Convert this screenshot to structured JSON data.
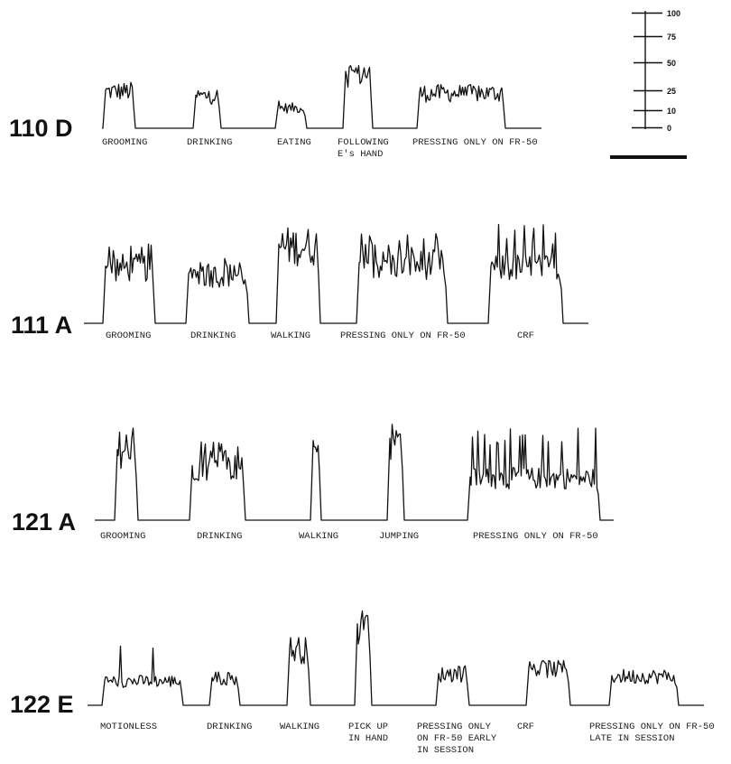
{
  "chart_data": {
    "type": "line",
    "title": "",
    "scale": {
      "ticks": [
        0,
        10,
        25,
        50,
        75,
        100
      ],
      "range": [
        0,
        100
      ]
    },
    "rows": [
      {
        "label": "110 D",
        "behaviors": [
          {
            "label": [
              "GROOMING"
            ],
            "level": 40,
            "peak": 52,
            "spiky": false
          },
          {
            "label": [
              "DRINKING"
            ],
            "level": 35,
            "peak": 42,
            "spiky": false
          },
          {
            "label": [
              "EATING"
            ],
            "level": 22,
            "peak": 30,
            "spiky": false
          },
          {
            "label": [
              "FOLLOWING",
              "E's HAND"
            ],
            "level": 60,
            "peak": 66,
            "spiky": false
          },
          {
            "label": [
              "PRESSING ONLY ON FR-50"
            ],
            "level": 38,
            "peak": 46,
            "spiky": false
          }
        ]
      },
      {
        "label": "111 A",
        "behaviors": [
          {
            "label": [
              "GROOMING"
            ],
            "level": 52,
            "peak": 72,
            "spiky": true
          },
          {
            "label": [
              "DRINKING"
            ],
            "level": 45,
            "peak": 60,
            "spiky": true
          },
          {
            "label": [
              "WALKING"
            ],
            "level": 72,
            "peak": 100,
            "spiky": false
          },
          {
            "label": [
              "PRESSING ONLY ON FR-50"
            ],
            "level": 55,
            "peak": 82,
            "spiky": true
          },
          {
            "label": [
              "CRF"
            ],
            "level": 52,
            "peak": 90,
            "spiky": true
          }
        ]
      },
      {
        "label": "121 A",
        "behaviors": [
          {
            "label": [
              "GROOMING"
            ],
            "level": 62,
            "peak": 88,
            "spiky": true
          },
          {
            "label": [
              "DRINKING"
            ],
            "level": 48,
            "peak": 75,
            "spiky": true
          },
          {
            "label": [
              "WALKING"
            ],
            "level": 70,
            "peak": 80,
            "spiky": false
          },
          {
            "label": [
              "JUMPING"
            ],
            "level": 72,
            "peak": 95,
            "spiky": false
          },
          {
            "label": [
              "PRESSING ONLY ON FR-50"
            ],
            "level": 38,
            "peak": 82,
            "spiky": true
          }
        ]
      },
      {
        "label": "122 E",
        "behaviors": [
          {
            "label": [
              "MOTIONLESS"
            ],
            "level": 25,
            "peak": 60,
            "spiky": false
          },
          {
            "label": [
              "DRINKING"
            ],
            "level": 28,
            "peak": 35,
            "spiky": false
          },
          {
            "label": [
              "WALKING"
            ],
            "level": 58,
            "peak": 68,
            "spiky": false
          },
          {
            "label": [
              "PICK UP",
              "IN HAND"
            ],
            "level": 82,
            "peak": 95,
            "spiky": false
          },
          {
            "label": [
              "PRESSING ONLY",
              "ON FR-50 EARLY",
              "IN SESSION"
            ],
            "level": 32,
            "peak": 40,
            "spiky": false
          },
          {
            "label": [
              "CRF"
            ],
            "level": 38,
            "peak": 45,
            "spiky": false
          },
          {
            "label": [
              "PRESSING ONLY ON FR-50",
              "LATE IN SESSION"
            ],
            "level": 30,
            "peak": 40,
            "spiky": false
          }
        ]
      }
    ]
  }
}
